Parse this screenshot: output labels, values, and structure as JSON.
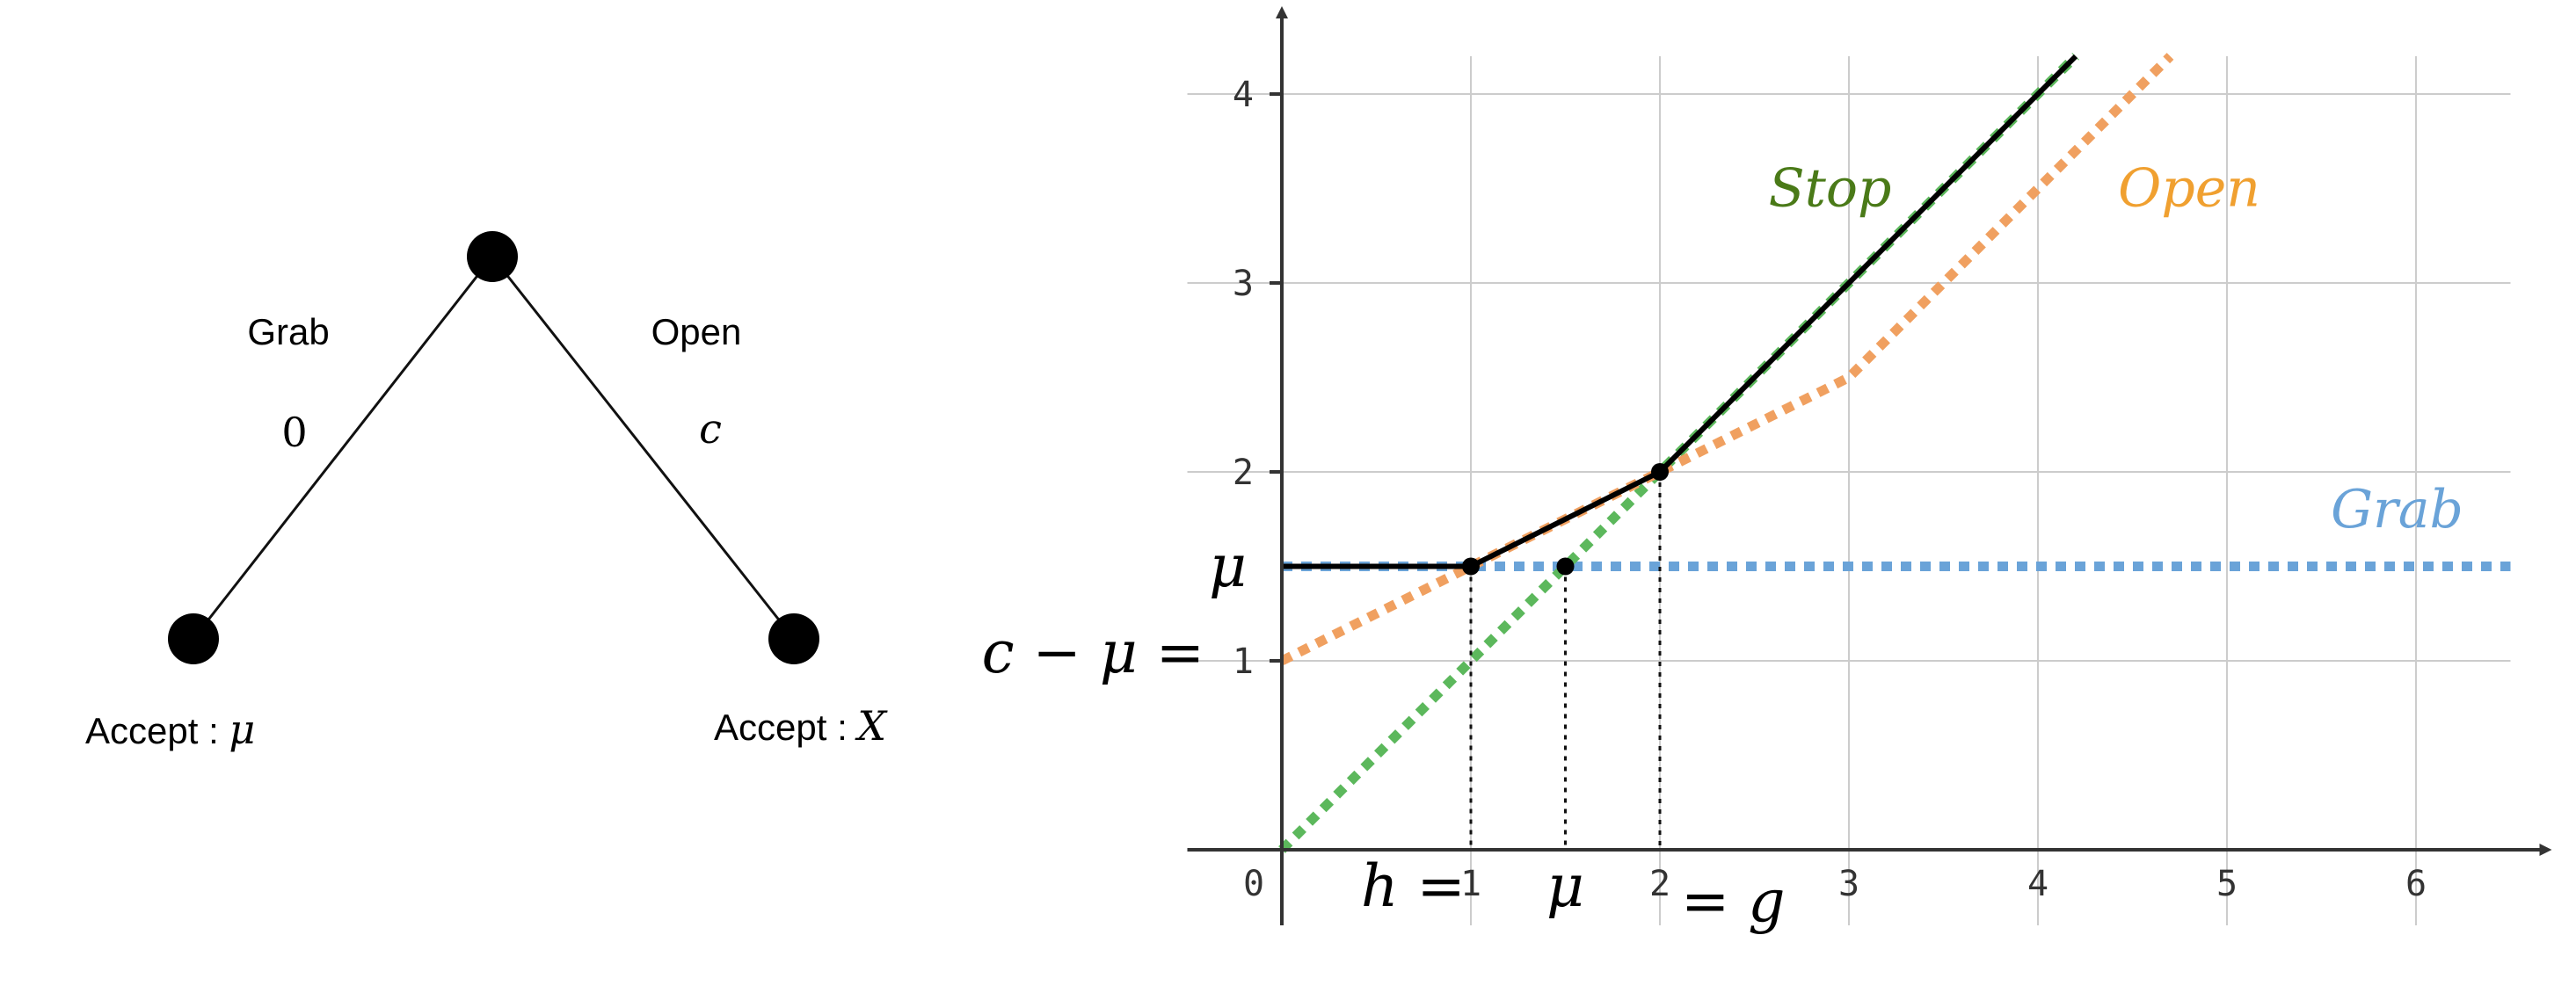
{
  "tree": {
    "left_action": "Grab",
    "right_action": "Open",
    "left_cost": "0",
    "right_cost": "c",
    "left_leaf_prefix": "Accept : ",
    "left_leaf_var": "μ",
    "right_leaf_prefix": "Accept : ",
    "right_leaf_var": "X"
  },
  "chart_data": {
    "type": "line",
    "title": "",
    "xlabel": "",
    "ylabel": "",
    "xlim": [
      0,
      6.5
    ],
    "ylim": [
      0,
      4.2
    ],
    "grid": true,
    "x_ticks": [
      0,
      1,
      2,
      3,
      4,
      5,
      6
    ],
    "y_ticks": [
      1,
      2,
      3,
      4
    ],
    "x_tick_labels": [
      "0",
      "1",
      "2",
      "3",
      "4",
      "5",
      "6"
    ],
    "y_tick_labels": [
      "1",
      "2",
      "3",
      "4"
    ],
    "series": [
      {
        "name": "Grab",
        "color": "#6aa3d8",
        "style": "dotted",
        "label_pos": [
          5.9,
          1.8
        ],
        "points": [
          [
            0,
            1.5
          ],
          [
            6.5,
            1.5
          ]
        ]
      },
      {
        "name": "Stop",
        "color": "#4a7a18",
        "style": "dotted-green",
        "label_pos": [
          2.9,
          3.5
        ],
        "points": [
          [
            0,
            0
          ],
          [
            4.2,
            4.2
          ]
        ]
      },
      {
        "name": "Open",
        "color": "#f0a030",
        "style": "dotted",
        "label_pos": [
          4.8,
          3.5
        ],
        "points": [
          [
            0,
            1
          ],
          [
            1,
            1.5
          ],
          [
            2,
            2
          ],
          [
            3,
            2.5
          ],
          [
            4,
            3.5
          ],
          [
            4.7,
            4.2
          ]
        ]
      },
      {
        "name": "",
        "color": "#000000",
        "style": "solid",
        "points": [
          [
            0,
            1.5
          ],
          [
            1,
            1.5
          ],
          [
            2,
            2
          ],
          [
            4.2,
            4.2
          ]
        ]
      }
    ],
    "marked_points": [
      [
        1,
        1.5
      ],
      [
        1.5,
        1.5
      ],
      [
        2,
        2
      ]
    ],
    "annotations": {
      "mu_y": "μ",
      "c_minus_mu": "c − μ =",
      "h_eq": "h =",
      "mu_x": "μ",
      "eq_g": "= g"
    }
  }
}
